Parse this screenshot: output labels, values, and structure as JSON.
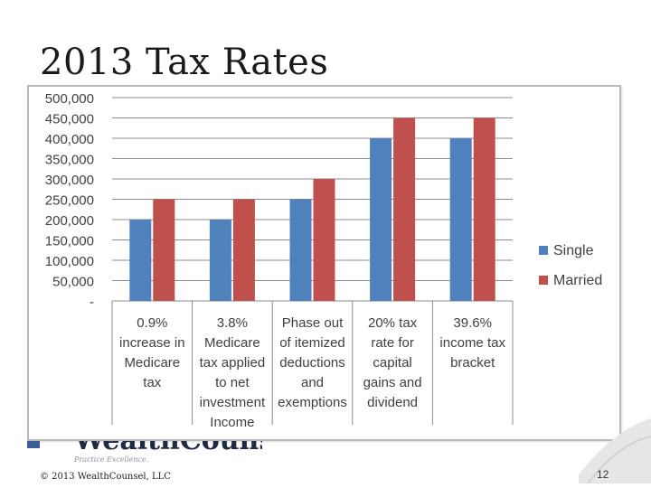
{
  "slide": {
    "title": "2013 Tax Rates",
    "copyright": "© 2013 WealthCounsel, LLC",
    "page_number": "12",
    "logo_text": "WealthCounsel",
    "tagline": "Practice Excellence."
  },
  "colors": {
    "single": "#4f81bd",
    "married": "#c0504d",
    "grid": "#8c8c8c",
    "label": "#404040"
  },
  "chart_data": {
    "type": "bar",
    "categories": [
      [
        "0.9%",
        "increase in",
        "Medicare",
        "tax"
      ],
      [
        "3.8%",
        "Medicare",
        "tax applied",
        "to net",
        "investment",
        "Income"
      ],
      [
        "Phase out",
        "of itemized",
        "deductions",
        "and",
        "exemptions"
      ],
      [
        "20% tax",
        "rate for",
        "capital",
        "gains and",
        "dividend"
      ],
      [
        "39.6%",
        "income tax",
        "bracket"
      ]
    ],
    "series": [
      {
        "name": "Single",
        "values": [
          200000,
          200000,
          250000,
          400000,
          400000
        ]
      },
      {
        "name": "Married",
        "values": [
          250000,
          250000,
          300000,
          450000,
          450000
        ]
      }
    ],
    "ylim": [
      0,
      500000
    ],
    "yticks": [
      "-",
      "50,000",
      "100,000",
      "150,000",
      "200,000",
      "250,000",
      "300,000",
      "350,000",
      "400,000",
      "450,000",
      "500,000"
    ],
    "grid": true,
    "legend_position": "right"
  }
}
